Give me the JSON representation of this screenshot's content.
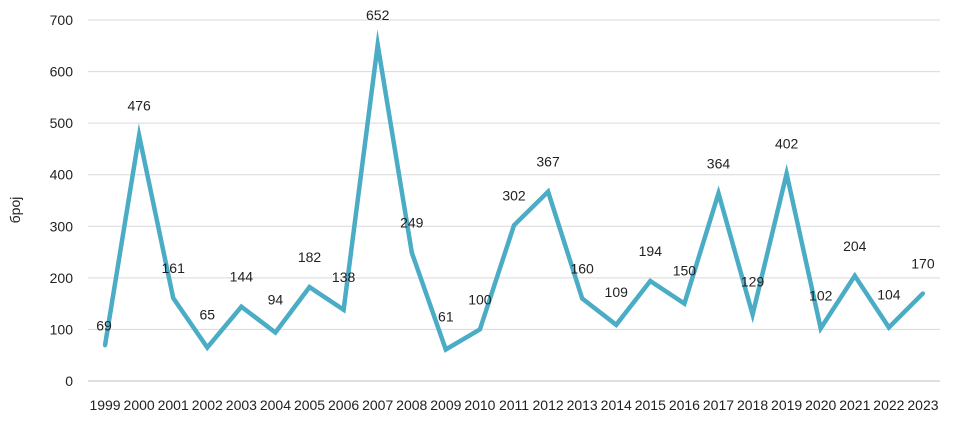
{
  "chart_data": {
    "type": "line",
    "title": "",
    "xlabel": "",
    "ylabel": "број",
    "ylim": [
      0,
      700
    ],
    "yticks": [
      0,
      100,
      200,
      300,
      400,
      500,
      600,
      700
    ],
    "grid": true,
    "legend": "none",
    "categories": [
      "1999",
      "2000",
      "2001",
      "2002",
      "2003",
      "2004",
      "2005",
      "2006",
      "2007",
      "2008",
      "2009",
      "2010",
      "2011",
      "2012",
      "2013",
      "2014",
      "2015",
      "2016",
      "2017",
      "2018",
      "2019",
      "2020",
      "2021",
      "2022",
      "2023"
    ],
    "series": [
      {
        "color": "#4bacc6",
        "values": [
          69,
          476,
          161,
          65,
          144,
          94,
          182,
          138,
          652,
          249,
          61,
          100,
          302,
          367,
          160,
          109,
          194,
          150,
          364,
          129,
          402,
          102,
          204,
          104,
          170
        ]
      }
    ]
  }
}
